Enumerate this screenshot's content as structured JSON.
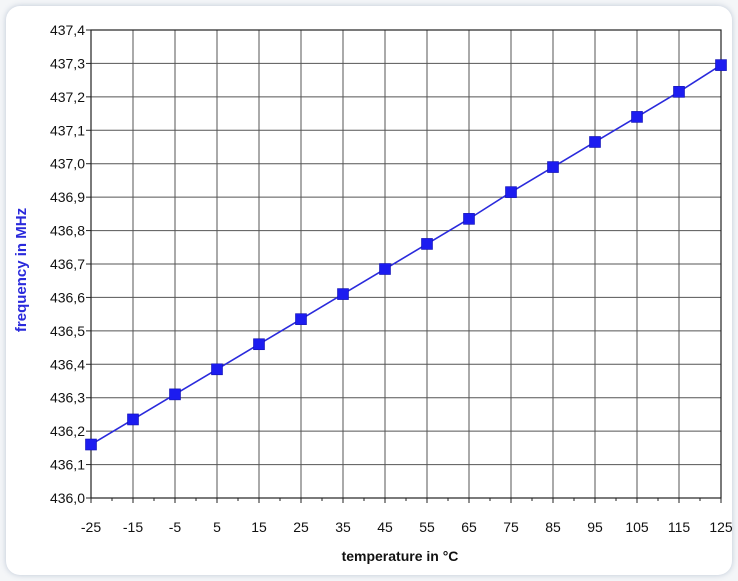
{
  "chart_data": {
    "type": "line",
    "title": "",
    "xlabel": "temperature in °C",
    "ylabel": "frequency in MHz",
    "x": [
      -25,
      -15,
      -5,
      5,
      15,
      25,
      35,
      45,
      55,
      65,
      75,
      85,
      95,
      105,
      115,
      125
    ],
    "series": [
      {
        "values": [
          436.16,
          436.235,
          436.31,
          436.385,
          436.46,
          436.535,
          436.61,
          436.685,
          436.76,
          436.835,
          436.915,
          436.99,
          437.065,
          437.14,
          437.215,
          437.295
        ]
      }
    ],
    "xlim": [
      -25,
      125
    ],
    "ylim": [
      436.0,
      437.4
    ],
    "x_ticks": [
      "-25",
      "-15",
      "-5",
      "5",
      "15",
      "25",
      "35",
      "45",
      "55",
      "65",
      "75",
      "85",
      "95",
      "105",
      "115",
      "125"
    ],
    "y_ticks": [
      "436,0",
      "436,1",
      "436,2",
      "436,3",
      "436,4",
      "436,5",
      "436,6",
      "436,7",
      "436,8",
      "436,9",
      "437,0",
      "437,1",
      "437,2",
      "437,3",
      "437,4"
    ],
    "grid": true,
    "legend": "none",
    "colors": {
      "line": "#2a2adc",
      "marker": "#1c1cf0",
      "ylabel": "#2a2adc",
      "grid": "#555555"
    }
  }
}
